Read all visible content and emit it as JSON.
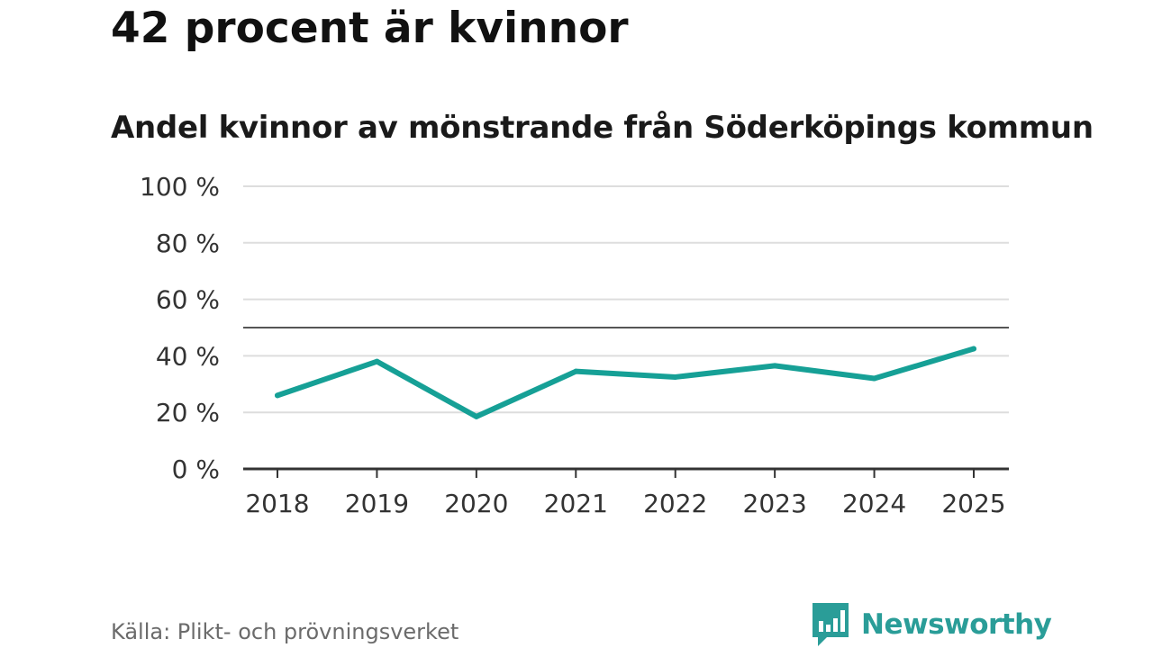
{
  "headline": "42 procent är kvinnor",
  "source": "Källa: Plikt- och prövningsverket",
  "brand": {
    "name": "Newsworthy",
    "icon": "newsworthy-logo-icon",
    "color": "#2a9d98"
  },
  "colors": {
    "line": "#16a096",
    "grid": "#dddddd",
    "axis": "#333333",
    "reference": "#555555"
  },
  "chart_data": {
    "type": "line",
    "title": "Andel kvinnor av mönstrande från Söderköpings kommun",
    "xlabel": "",
    "ylabel": "",
    "categories": [
      "2018",
      "2019",
      "2020",
      "2021",
      "2022",
      "2023",
      "2024",
      "2025"
    ],
    "series": [
      {
        "name": "Andel kvinnor",
        "values": [
          26,
          38,
          18.5,
          34.5,
          32.5,
          36.5,
          32,
          42.5
        ]
      }
    ],
    "ylim": [
      0,
      100
    ],
    "yticks": [
      0,
      20,
      40,
      60,
      80,
      100
    ],
    "ytick_labels": [
      "0 %",
      "20 %",
      "40 %",
      "60 %",
      "80 %",
      "100 %"
    ],
    "reference_line": 50,
    "grid": true,
    "legend": "none"
  }
}
